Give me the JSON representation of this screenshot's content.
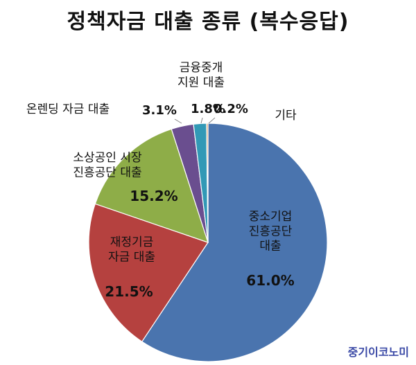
{
  "title": "정책자금 대출 종류 (복수응답)",
  "brand": "중기이코노미",
  "chart_data": {
    "type": "pie",
    "title": "정책자금 대출 종류 (복수응답)",
    "slices": [
      {
        "label_lines": [
          "중소기업",
          "진흥공단",
          "대출"
        ],
        "value": 61.0,
        "value_label": "61.0%",
        "color": "#4a74ae"
      },
      {
        "label_lines": [
          "재정기금",
          "자금 대출"
        ],
        "value": 21.5,
        "value_label": "21.5%",
        "color": "#b5413f"
      },
      {
        "label_lines": [
          "소상공인 시장",
          "진흥공단 대출"
        ],
        "value": 15.2,
        "value_label": "15.2%",
        "color": "#8ead48"
      },
      {
        "label_lines": [
          "온렌딩 자금 대출"
        ],
        "value": 3.1,
        "value_label": "3.1%",
        "color": "#6a4e8f"
      },
      {
        "label_lines": [
          "금융중개",
          "지원 대출"
        ],
        "value": 1.8,
        "value_label": "1.8%",
        "color": "#3299b6"
      },
      {
        "label_lines": [
          "기타"
        ],
        "value": 0.2,
        "value_label": "0.2%",
        "color": "#e08a3c"
      }
    ]
  }
}
